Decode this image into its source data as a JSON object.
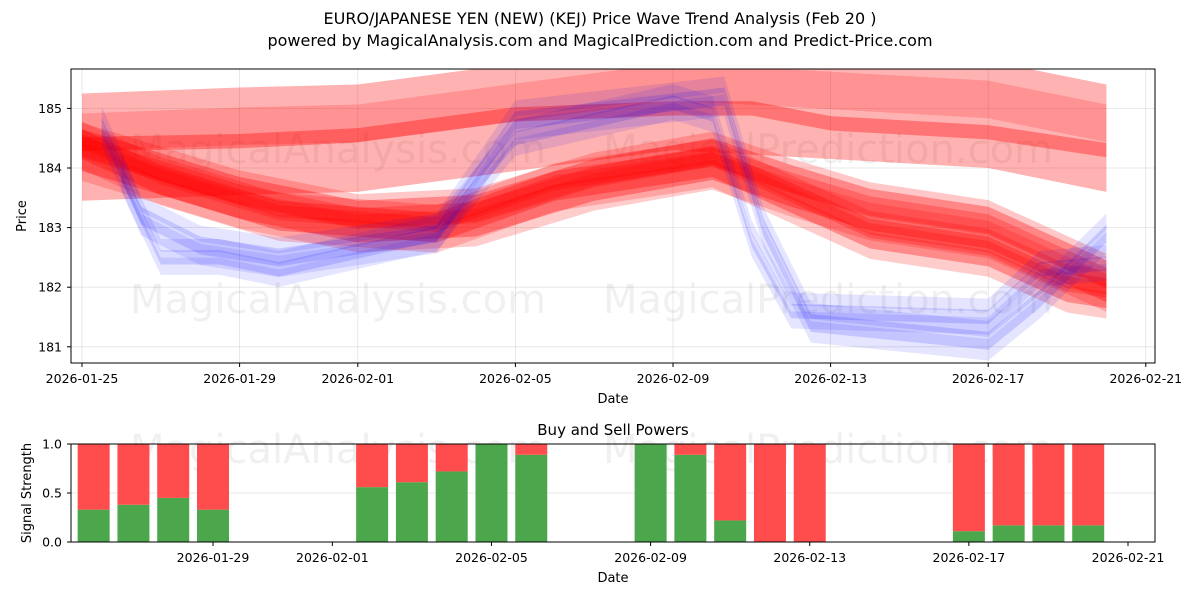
{
  "header": {
    "title": "EURO/JAPANESE YEN (NEW) (KEJ) Price Wave Trend Analysis (Feb 20 )",
    "subtitle": "powered by MagicalAnalysis.com and MagicalPrediction.com and Predict-Price.com"
  },
  "watermarks": {
    "left": "MagicalAnalysis.com",
    "right": "MagicalPrediction.com"
  },
  "colors": {
    "sell_band": "#ff0000",
    "buy_band": "#0000ff",
    "buy_bar": "#4ca64c",
    "sell_bar": "#ff4c4c"
  },
  "chart_data": [
    {
      "type": "area",
      "title": "EURO/JAPANESE YEN (NEW) (KEJ) Price Wave Trend Analysis (Feb 20 )",
      "xlabel": "Date",
      "ylabel": "Price",
      "x_ticks": [
        "2026-01-25",
        "2026-01-29",
        "2026-02-01",
        "2026-02-05",
        "2026-02-09",
        "2026-02-13",
        "2026-02-17",
        "2026-02-21"
      ],
      "y_ticks": [
        "181",
        "182",
        "183",
        "184",
        "185"
      ],
      "ylim": [
        180.75,
        185.65
      ],
      "xlim": [
        "2026-01-24.7",
        "2026-02-21.3"
      ],
      "grid": true,
      "description": "Overlapping semi-transparent red (sell/downtrend) and blue (buy/uptrend) wave bands showing price trend projections",
      "series": [
        {
          "name": "red-wide-upper",
          "color": "red",
          "x": [
            "2026-01-25",
            "2026-01-29",
            "2026-02-01",
            "2026-02-05",
            "2026-02-09",
            "2026-02-13",
            "2026-02-17",
            "2026-02-20"
          ],
          "center": [
            184.35,
            184.45,
            184.5,
            184.85,
            185.2,
            185.05,
            184.9,
            184.5
          ],
          "half_width": 0.9
        },
        {
          "name": "red-mid-line",
          "color": "red",
          "x": [
            "2026-01-25",
            "2026-01-29",
            "2026-02-01",
            "2026-02-05",
            "2026-02-09",
            "2026-02-11",
            "2026-02-13",
            "2026-02-17",
            "2026-02-20"
          ],
          "center": [
            184.4,
            184.45,
            184.55,
            184.9,
            185.0,
            185.0,
            184.75,
            184.6,
            184.3
          ],
          "half_width": 0.12
        },
        {
          "name": "red-center",
          "color": "red",
          "x": [
            "2026-01-25",
            "2026-01-29",
            "2026-02-01",
            "2026-02-04",
            "2026-02-07",
            "2026-02-10",
            "2026-02-12",
            "2026-02-14",
            "2026-02-17",
            "2026-02-20"
          ],
          "center": [
            184.3,
            183.5,
            183.1,
            183.2,
            183.8,
            184.15,
            183.7,
            183.3,
            183.0,
            182.1
          ],
          "half_width": 0.35
        },
        {
          "name": "red-lower-1",
          "color": "red",
          "x": [
            "2026-01-25",
            "2026-01-27",
            "2026-01-30",
            "2026-02-03",
            "2026-02-06",
            "2026-02-10",
            "2026-02-12",
            "2026-02-14",
            "2026-02-17",
            "2026-02-19",
            "2026-02-20"
          ],
          "center": [
            184.4,
            183.8,
            183.2,
            183.0,
            183.7,
            184.1,
            183.5,
            182.9,
            182.6,
            182.0,
            181.9
          ],
          "half_width": 0.25
        },
        {
          "name": "blue-1",
          "color": "blue",
          "x": [
            "2026-01-25.5",
            "2026-01-26.5",
            "2026-01-28",
            "2026-01-30",
            "2026-02-03",
            "2026-02-05",
            "2026-02-09",
            "2026-02-10.3",
            "2026-02-11.3",
            "2026-02-12.5",
            "2026-02-17",
            "2026-02-18.3",
            "2026-02-20"
          ],
          "center": [
            184.7,
            183.2,
            182.7,
            182.5,
            182.9,
            184.8,
            185.1,
            185.2,
            183.0,
            181.4,
            181.1,
            181.8,
            182.9
          ],
          "half_width": 0.15
        },
        {
          "name": "blue-2",
          "color": "blue",
          "x": [
            "2026-01-26",
            "2026-01-27",
            "2026-01-28.5",
            "2026-01-30",
            "2026-02-03",
            "2026-02-05",
            "2026-02-09",
            "2026-02-10",
            "2026-02-11",
            "2026-02-12",
            "2026-02-17",
            "2026-02-18.3",
            "2026-02-20"
          ],
          "center": [
            183.9,
            182.5,
            182.5,
            182.3,
            182.9,
            184.5,
            185.1,
            184.9,
            182.8,
            181.6,
            181.5,
            182.3,
            182.4
          ],
          "half_width": 0.12
        }
      ]
    },
    {
      "type": "bar",
      "title": "Buy and Sell Powers",
      "xlabel": "Date",
      "ylabel": "Signal Strength",
      "ylim": [
        0,
        1
      ],
      "y_ticks": [
        "0.0",
        "0.5",
        "1.0"
      ],
      "x_ticks": [
        "2026-01-29",
        "2026-02-01",
        "2026-02-05",
        "2026-02-09",
        "2026-02-13",
        "2026-02-17",
        "2026-02-21"
      ],
      "grid": true,
      "stacked": true,
      "categories": [
        "2026-01-26",
        "2026-01-27",
        "2026-01-28",
        "2026-01-29",
        "2026-02-02",
        "2026-02-03",
        "2026-02-04",
        "2026-02-05",
        "2026-02-06",
        "2026-02-09",
        "2026-02-10",
        "2026-02-11",
        "2026-02-12",
        "2026-02-13",
        "2026-02-17",
        "2026-02-18",
        "2026-02-19",
        "2026-02-20"
      ],
      "series": [
        {
          "name": "Buy",
          "color": "#4ca64c",
          "values": [
            0.33,
            0.38,
            0.45,
            0.33,
            0.56,
            0.61,
            0.72,
            1.0,
            0.89,
            1.0,
            0.89,
            0.22,
            0.0,
            0.0,
            0.11,
            0.17,
            0.17,
            0.17
          ]
        },
        {
          "name": "Sell",
          "color": "#ff4c4c",
          "values": [
            0.67,
            0.62,
            0.55,
            0.67,
            0.44,
            0.39,
            0.28,
            0.0,
            0.11,
            0.0,
            0.11,
            0.78,
            1.0,
            1.0,
            0.89,
            0.83,
            0.83,
            0.83
          ]
        }
      ]
    }
  ]
}
